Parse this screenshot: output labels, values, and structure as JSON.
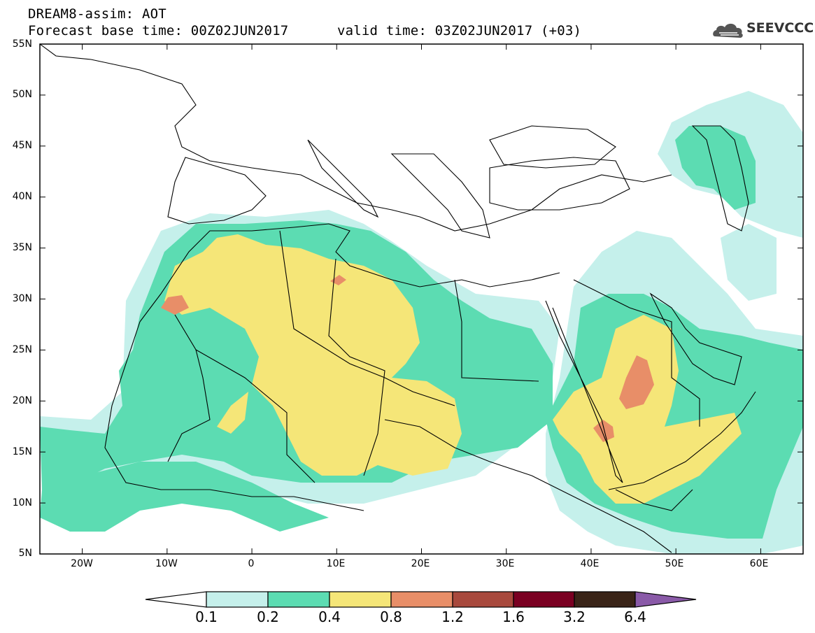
{
  "header": {
    "title": "DREAM8-assim: AOT",
    "base_time": "Forecast base time: 00Z02JUN2017",
    "valid_time": "valid time: 03Z02JUN2017 (+03)"
  },
  "logo": {
    "text": "SEEVCCC",
    "icon": "cloud-icon"
  },
  "map": {
    "lon_range": [
      -25,
      65
    ],
    "lat_range": [
      5,
      55
    ],
    "lat_labels": [
      "55N",
      "50N",
      "45N",
      "40N",
      "35N",
      "30N",
      "25N",
      "20N",
      "15N",
      "10N",
      "5N"
    ],
    "lon_labels": [
      "20W",
      "10W",
      "0",
      "10E",
      "20E",
      "30E",
      "40E",
      "50E",
      "60E"
    ]
  },
  "colorbar": {
    "labels": [
      "0.1",
      "0.2",
      "0.4",
      "0.8",
      "1.2",
      "1.6",
      "3.2",
      "6.4"
    ],
    "colors": [
      "#ffffff",
      "#c5f0eb",
      "#5cdcb2",
      "#f5e678",
      "#e88e68",
      "#a8493d",
      "#7a0022",
      "#3a2418",
      "#8a5aa8"
    ]
  },
  "colors": {
    "c1": "#c5f0eb",
    "c2": "#5cdcb2",
    "c3": "#f5e678",
    "c4": "#e88e68",
    "border": "#000000"
  }
}
